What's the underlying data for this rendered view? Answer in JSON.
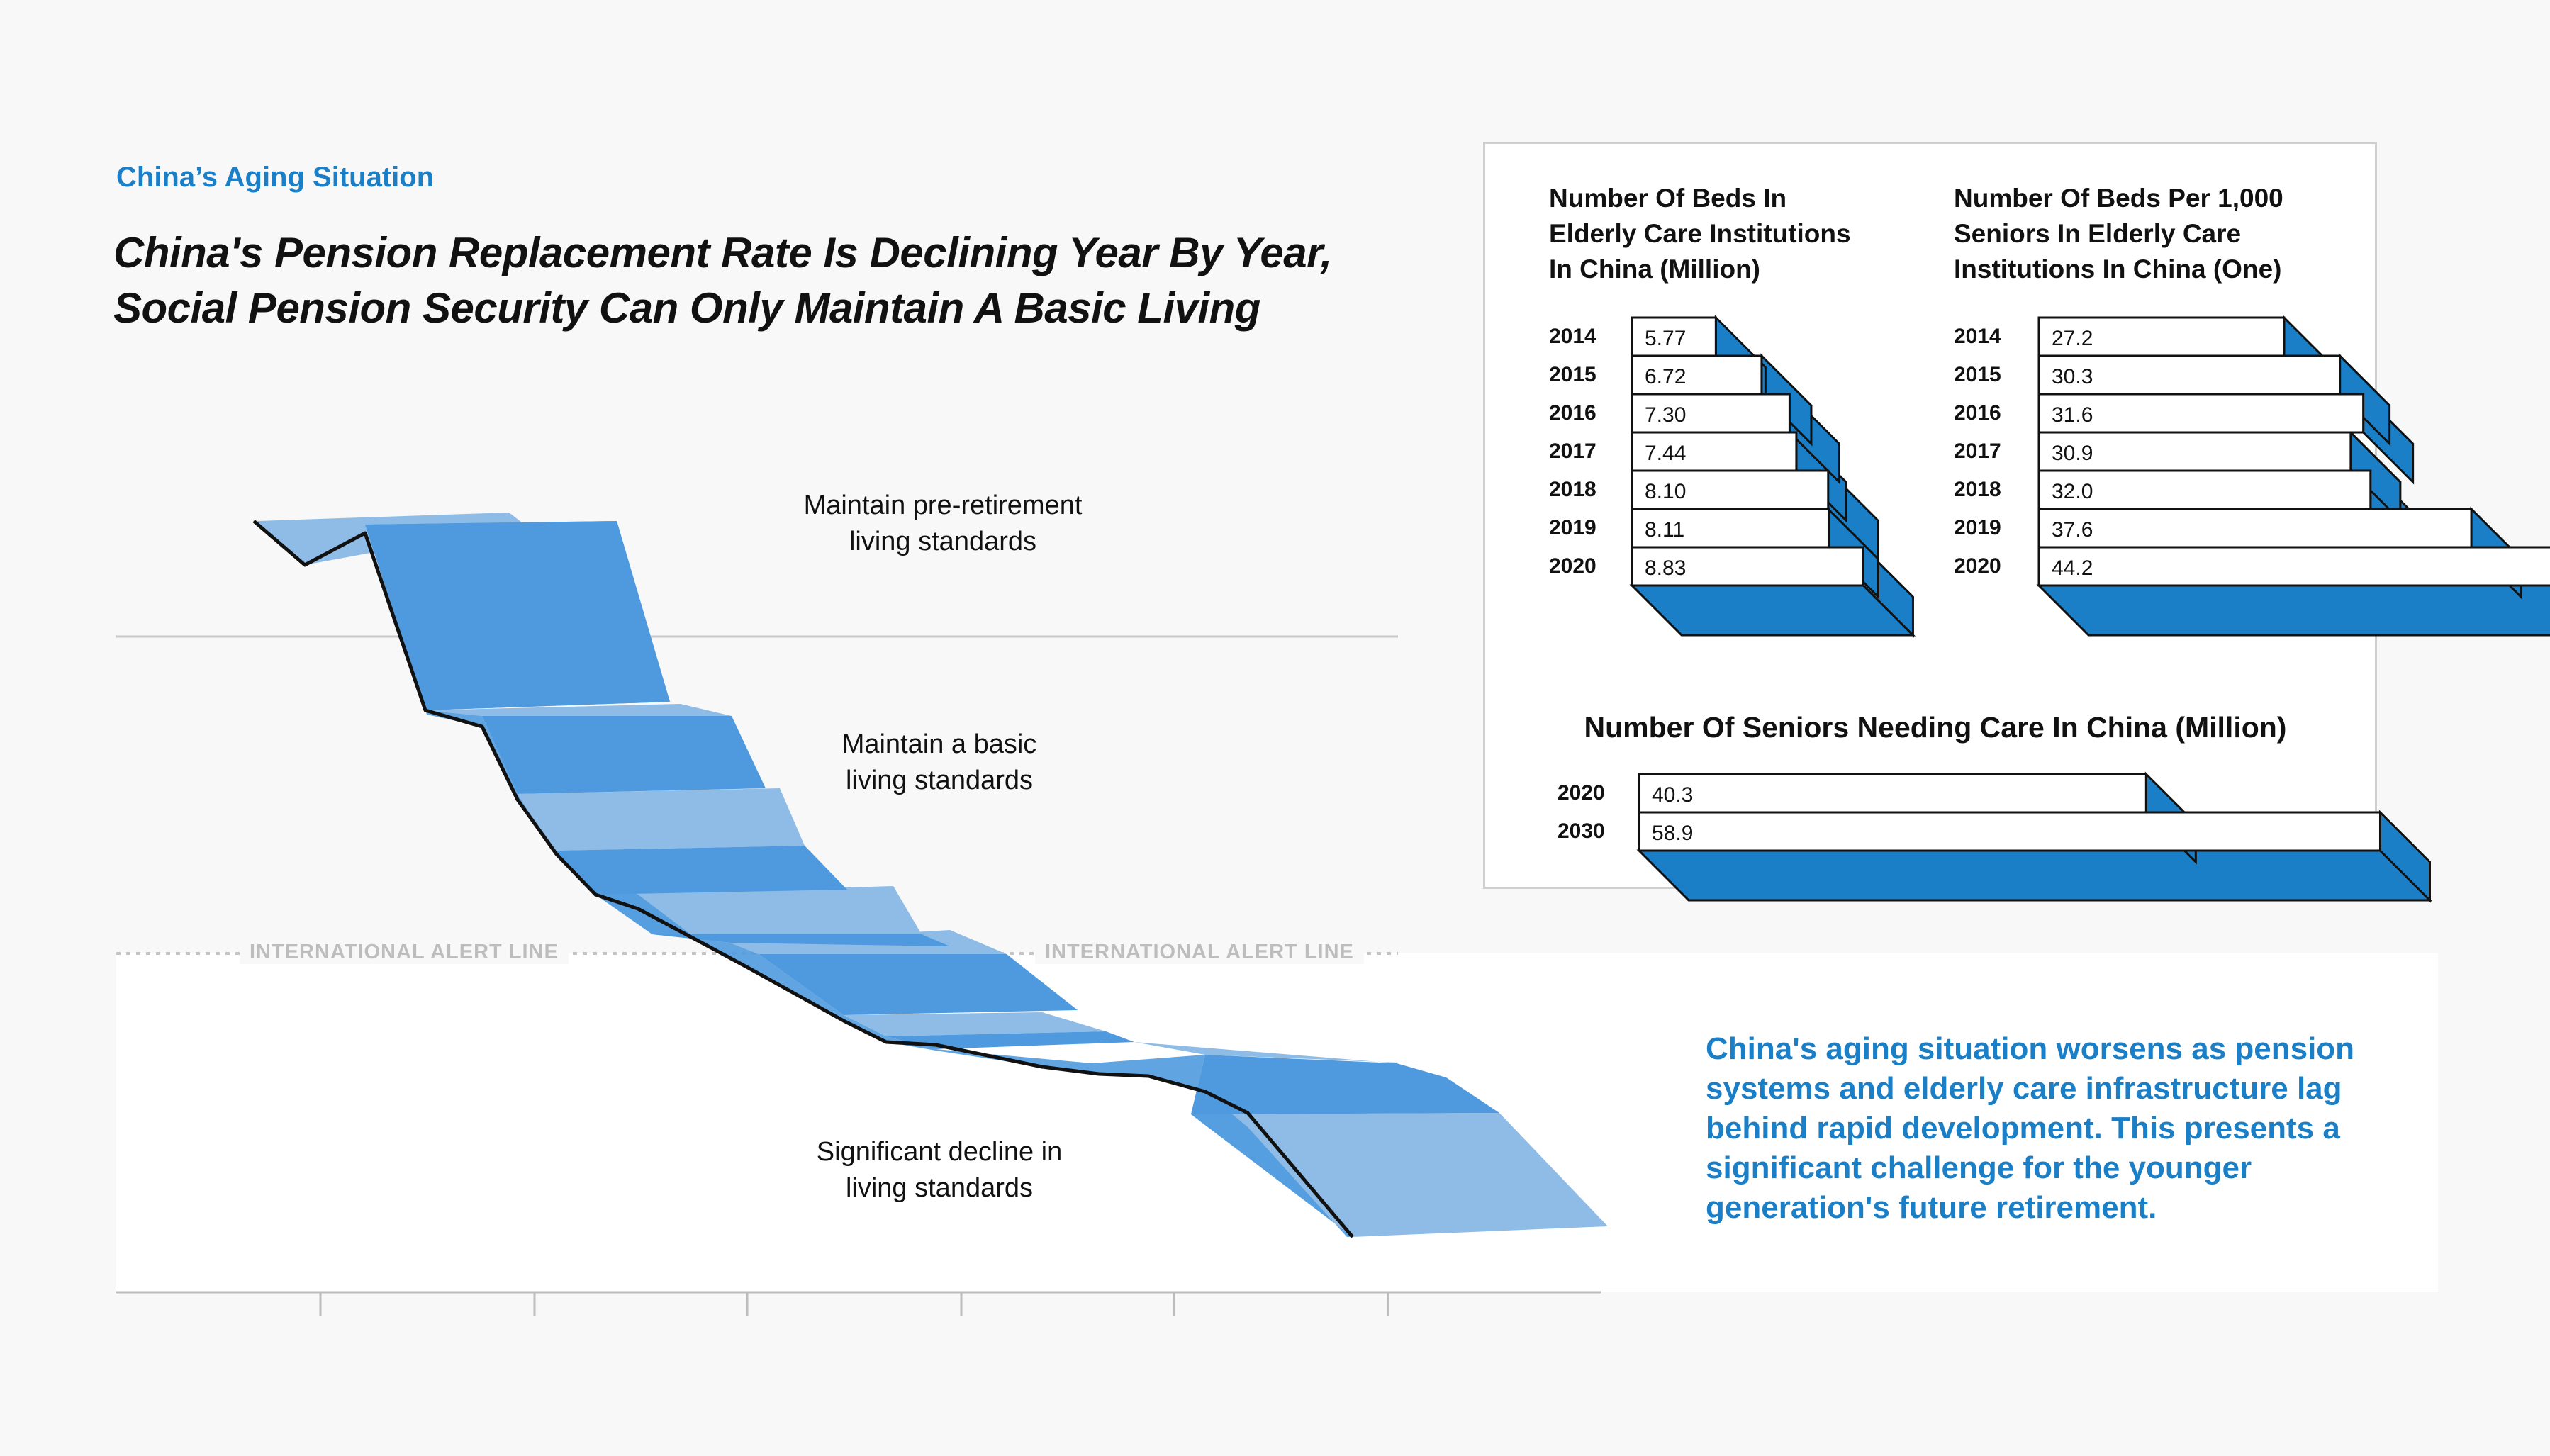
{
  "header": {
    "kicker": "China’s Aging Situation",
    "title_line1": "China's Pension Replacement Rate Is Declining Year By Year,",
    "title_line2": "Social Pension Security Can Only Maintain A Basic Living"
  },
  "ribbon": {
    "stage_top_line1": "Maintain pre-retirement",
    "stage_top_line2": "living standards",
    "stage_mid_line1": "Maintain a basic",
    "stage_mid_line2": "living standards",
    "stage_low_line1": "Significant decline in",
    "stage_low_line2": "living standards",
    "alert_left": "INTERNATIONAL ALERT LINE",
    "alert_right": "INTERNATIONAL ALERT LINE"
  },
  "summary": {
    "text": "China's aging situation worsens as pension systems and elderly care infrastructure lag behind rapid development. This presents a significant challenge for the younger generation's future retirement."
  },
  "colors": {
    "accent": "#1a7fc6",
    "bar_side": "#1a7fc6",
    "ribbon_dark": "#4f9ade",
    "ribbon_light": "#8fbce6"
  },
  "chart_data": [
    {
      "type": "bar",
      "title_line1": "Number Of Beds In",
      "title_line2": "Elderly Care Institutions",
      "title_line3": "In China (Million)",
      "categories": [
        "2014",
        "2015",
        "2016",
        "2017",
        "2018",
        "2019",
        "2020"
      ],
      "values": [
        5.77,
        6.72,
        7.3,
        7.44,
        8.1,
        8.11,
        8.83
      ],
      "labels": [
        "5.77",
        "6.72",
        "7.30",
        "7.44",
        "8.10",
        "8.11",
        "8.83"
      ],
      "orientation": "horizontal"
    },
    {
      "type": "bar",
      "title_line1": "Number Of Beds Per 1,000",
      "title_line2": "Seniors In Elderly Care",
      "title_line3": "Institutions In China (One)",
      "categories": [
        "2014",
        "2015",
        "2016",
        "2017",
        "2018",
        "2019",
        "2020"
      ],
      "values": [
        27.2,
        30.3,
        31.6,
        30.9,
        32.0,
        37.6,
        44.2
      ],
      "labels": [
        "27.2",
        "30.3",
        "31.6",
        "30.9",
        "32.0",
        "37.6",
        "44.2"
      ],
      "orientation": "horizontal"
    },
    {
      "type": "bar",
      "title": "Number Of Seniors Needing Care In China (Million)",
      "categories": [
        "2020",
        "2030"
      ],
      "values": [
        40.3,
        58.9
      ],
      "labels": [
        "40.3",
        "58.9"
      ],
      "orientation": "horizontal"
    }
  ]
}
